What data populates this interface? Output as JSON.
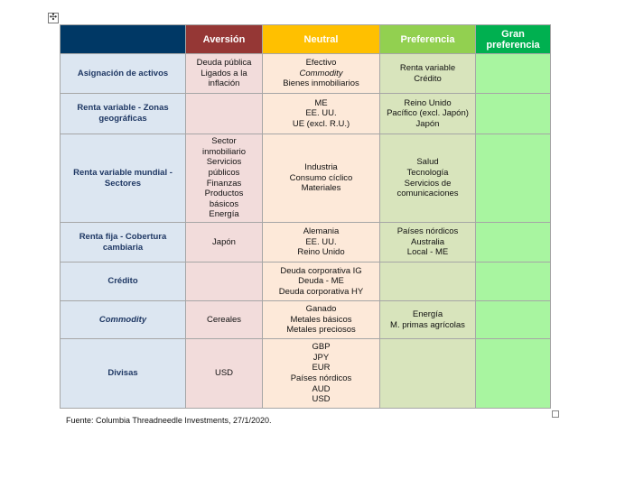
{
  "headers": [
    "",
    "Aversión",
    "Neutral",
    "Preferencia",
    "Gran preferencia"
  ],
  "rows": [
    {
      "label": [
        "Asignación de activos"
      ],
      "cells": [
        [
          "Deuda pública",
          "Ligados a la",
          "inflación"
        ],
        [
          "Efectivo",
          "*Commodity",
          "Bienes inmobiliarios"
        ],
        [
          "Renta variable",
          "Crédito"
        ],
        []
      ],
      "h": 44
    },
    {
      "label": [
        "Renta variable - Zonas",
        "geográficas"
      ],
      "cells": [
        [],
        [
          "ME",
          "EE. UU.",
          "UE (excl. R.U.)"
        ],
        [
          "Reino Unido",
          "Pacífico (excl. Japón)",
          "Japón"
        ],
        []
      ],
      "h": 45
    },
    {
      "label": [
        "Renta variable mundial -",
        "Sectores"
      ],
      "cells": [
        [
          "Sector",
          "inmobiliario",
          "Servicios",
          "públicos",
          "Finanzas",
          "Productos",
          "básicos",
          "Energía"
        ],
        [
          "Industria",
          "Consumo cíclico",
          "Materiales"
        ],
        [
          "Salud",
          "Tecnología",
          "Servicios de",
          "comunicaciones"
        ],
        []
      ],
      "h": 98
    },
    {
      "label": [
        "Renta fija - Cobertura",
        "cambiaria"
      ],
      "cells": [
        [
          "Japón"
        ],
        [
          "Alemania",
          "EE. UU.",
          "Reino Unido"
        ],
        [
          "Países nórdicos",
          "Australia",
          "Local - ME"
        ],
        []
      ],
      "h": 44
    },
    {
      "label": [
        "Crédito"
      ],
      "cells": [
        [],
        [
          "Deuda corporativa IG",
          "Deuda - ME",
          "Deuda corporativa HY"
        ],
        [],
        []
      ],
      "h": 43
    },
    {
      "label": [
        "*Commodity"
      ],
      "cells": [
        [
          "Cereales"
        ],
        [
          "Ganado",
          "Metales básicos",
          "Metales preciosos"
        ],
        [
          "Energía",
          "M. primas agrícolas"
        ],
        []
      ],
      "h": 42
    },
    {
      "label": [
        "Divisas"
      ],
      "cells": [
        [
          "USD"
        ],
        [
          "GBP",
          "JPY",
          "EUR",
          "Países nórdicos",
          "AUD",
          "USD"
        ],
        [],
        []
      ],
      "h": 77
    }
  ],
  "source": "Fuente: Columbia Threadneedle Investments, 27/1/2020.",
  "icons": {
    "move": "move-handle-icon",
    "resize": "resize-handle-icon"
  }
}
